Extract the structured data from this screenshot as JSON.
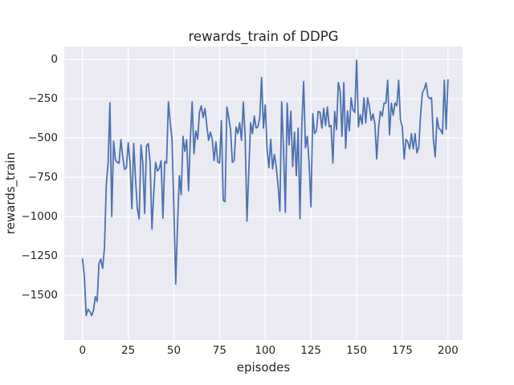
{
  "chart_data": {
    "type": "line",
    "title": "rewards_train of DDPG",
    "xlabel": "episodes",
    "ylabel": "rewards_train",
    "x_start": 0,
    "x_step": 1,
    "values": [
      -1270,
      -1380,
      -1630,
      -1590,
      -1605,
      -1630,
      -1597,
      -1510,
      -1540,
      -1300,
      -1270,
      -1330,
      -1200,
      -800,
      -660,
      -276,
      -1000,
      -520,
      -640,
      -655,
      -660,
      -510,
      -620,
      -700,
      -690,
      -530,
      -655,
      -950,
      -535,
      -760,
      -950,
      -1015,
      -545,
      -660,
      -980,
      -550,
      -535,
      -660,
      -1080,
      -845,
      -655,
      -710,
      -695,
      -645,
      -1010,
      -650,
      -660,
      -270,
      -400,
      -510,
      -950,
      -1430,
      -1050,
      -740,
      -860,
      -490,
      -585,
      -510,
      -835,
      -508,
      -270,
      -600,
      -455,
      -508,
      -337,
      -295,
      -370,
      -312,
      -420,
      -515,
      -463,
      -508,
      -644,
      -525,
      -652,
      -660,
      -390,
      -897,
      -905,
      -303,
      -370,
      -447,
      -655,
      -644,
      -430,
      -472,
      -403,
      -515,
      -270,
      -490,
      -1029,
      -705,
      -403,
      -472,
      -361,
      -437,
      -428,
      -370,
      -115,
      -437,
      -290,
      -570,
      -690,
      -508,
      -697,
      -605,
      -682,
      -800,
      -965,
      -270,
      -570,
      -973,
      -278,
      -545,
      -330,
      -682,
      -463,
      -740,
      -437,
      -1013,
      -420,
      -140,
      -562,
      -490,
      -660,
      -938,
      -345,
      -472,
      -455,
      -330,
      -337,
      -437,
      -312,
      -420,
      -303,
      -428,
      -420,
      -660,
      -330,
      -447,
      -148,
      -200,
      -490,
      -148,
      -566,
      -327,
      -454,
      -245,
      -321,
      -337,
      -5,
      -428,
      -352,
      -413,
      -244,
      -403,
      -244,
      -301,
      -388,
      -347,
      -412,
      -633,
      -437,
      -330,
      -361,
      -278,
      -278,
      -133,
      -480,
      -278,
      -355,
      -278,
      -295,
      -133,
      -385,
      -428,
      -633,
      -508,
      -525,
      -570,
      -472,
      -570,
      -472,
      -595,
      -560,
      -355,
      -210,
      -190,
      -150,
      -235,
      -250,
      -244,
      -505,
      -620,
      -372,
      -439,
      -449,
      -474,
      -133,
      -445,
      -130
    ],
    "xticks": [
      0,
      25,
      50,
      75,
      100,
      125,
      150,
      175,
      200
    ],
    "yticks": [
      0,
      -250,
      -500,
      -750,
      -1000,
      -1250,
      -1500
    ],
    "xlim": [
      -10,
      208
    ],
    "ylim": [
      -1786,
      82
    ],
    "grid": true,
    "legend": "none",
    "line_color": "#4c72b0",
    "plot_bg_color": "#eaeaf2",
    "grid_color": "#ffffff",
    "text_color": "#262626"
  }
}
